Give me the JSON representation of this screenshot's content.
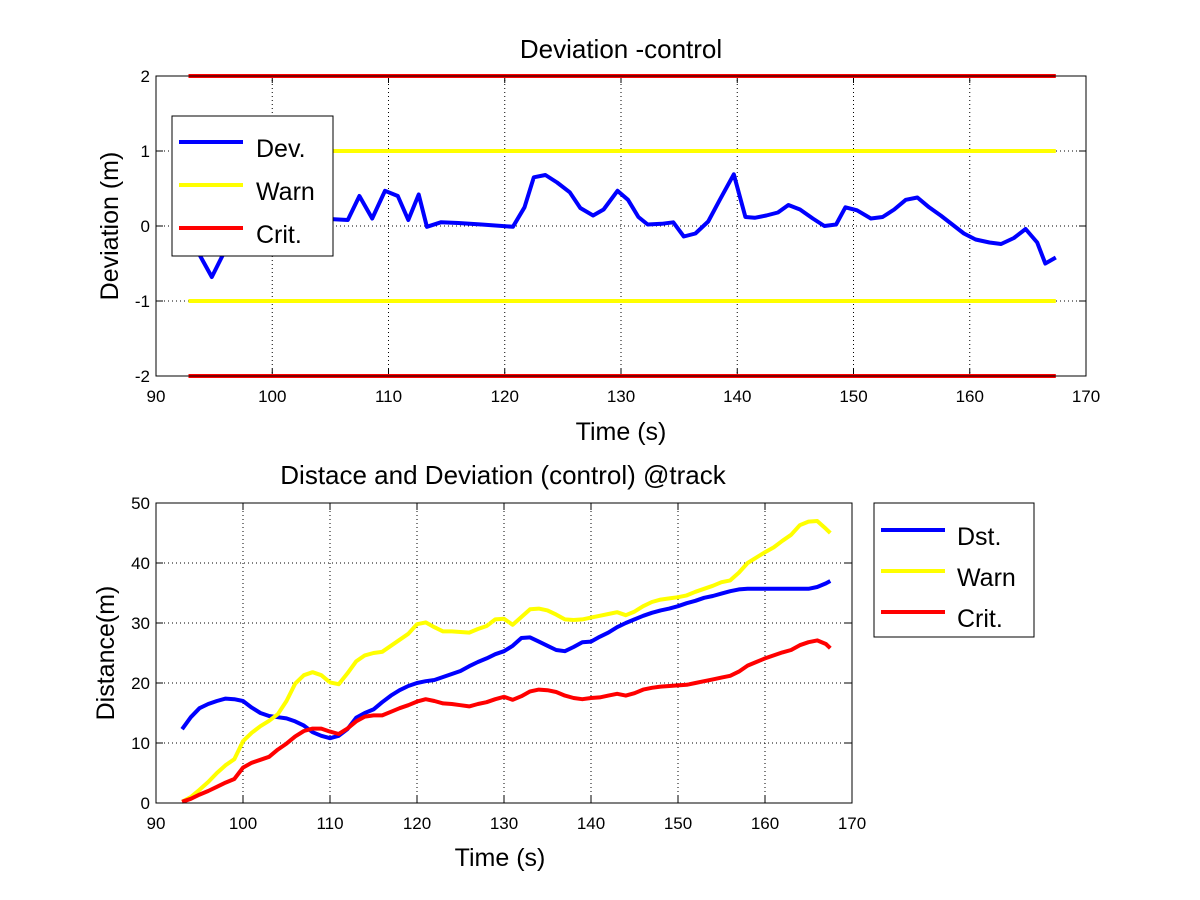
{
  "chart_data": [
    {
      "type": "line",
      "title": "Deviation -control",
      "xlabel": "Time (s)",
      "ylabel": "Deviation (m)",
      "xlim": [
        90,
        170
      ],
      "ylim": [
        -2,
        2
      ],
      "xticks": [
        "90",
        "100",
        "110",
        "120",
        "130",
        "140",
        "150",
        "160",
        "170"
      ],
      "yticks": [
        "-2",
        "-1",
        "0",
        "1",
        "2"
      ],
      "grid": true,
      "legend_position": "top-left",
      "series": [
        {
          "name": "Dev.",
          "color": "#0000ff",
          "x": [
            92.8,
            93.8,
            94.8,
            95.7,
            96.5,
            97.5,
            98.5,
            99.5,
            100.5,
            101.5,
            102.5,
            103.5,
            104.5,
            105.3,
            106.5,
            107.5,
            108.6,
            109.7,
            110.8,
            111.7,
            112.6,
            113.3,
            114.5,
            116,
            118,
            120.7,
            121.7,
            122.5,
            123.5,
            124.5,
            125.6,
            126.5,
            127.6,
            128.5,
            129.7,
            130.6,
            131.5,
            132.3,
            133.5,
            134.5,
            135.4,
            136.4,
            137.5,
            138.5,
            139.7,
            140.7,
            141.5,
            142.5,
            143.5,
            144.4,
            145.4,
            146.5,
            147.5,
            148.5,
            149.3,
            150.3,
            151.5,
            152.5,
            153.5,
            154.5,
            155.5,
            156.5,
            157.5,
            158.5,
            159.5,
            160.5,
            161.7,
            162.7,
            163.8,
            164.8,
            165.8,
            166.5,
            167.4
          ],
          "y": [
            -0.15,
            -0.4,
            -0.68,
            -0.4,
            -0.15,
            0.02,
            0.1,
            0.18,
            0.25,
            0.28,
            0.25,
            0.18,
            0.12,
            0.09,
            0.08,
            0.4,
            0.1,
            0.47,
            0.4,
            0.08,
            0.42,
            -0.01,
            0.05,
            0.04,
            0.02,
            -0.01,
            0.25,
            0.65,
            0.68,
            0.58,
            0.45,
            0.24,
            0.14,
            0.22,
            0.47,
            0.35,
            0.12,
            0.02,
            0.03,
            0.05,
            -0.14,
            -0.1,
            0.06,
            0.35,
            0.69,
            0.12,
            0.11,
            0.14,
            0.18,
            0.28,
            0.22,
            0.1,
            0.0,
            0.02,
            0.25,
            0.21,
            0.1,
            0.12,
            0.22,
            0.35,
            0.38,
            0.25,
            0.14,
            0.02,
            -0.1,
            -0.18,
            -0.22,
            -0.24,
            -0.16,
            -0.04,
            -0.22,
            -0.5,
            -0.42
          ]
        },
        {
          "name": "Warn",
          "color": "#ffff00",
          "x": [
            92.8,
            167.4,
            null,
            92.8,
            167.4
          ],
          "y": [
            1,
            1,
            null,
            -1,
            -1
          ]
        },
        {
          "name": "Crit.",
          "color": "#ff0000",
          "x": [
            92.8,
            167.4,
            null,
            92.8,
            167.4
          ],
          "y": [
            2,
            2,
            null,
            -2,
            -2
          ]
        }
      ]
    },
    {
      "type": "line",
      "title": "Distace and Deviation (control) @track",
      "xlabel": "Time (s)",
      "ylabel": "Distance(m)",
      "xlim": [
        90,
        170
      ],
      "ylim": [
        0,
        50
      ],
      "xticks": [
        "90",
        "100",
        "110",
        "120",
        "130",
        "140",
        "150",
        "160",
        "170"
      ],
      "yticks": [
        "0",
        "10",
        "20",
        "30",
        "40",
        "50"
      ],
      "grid": true,
      "legend_position": "outside-right",
      "series": [
        {
          "name": "Dst.",
          "color": "#0000ff",
          "x": [
            93,
            94,
            95,
            96,
            97,
            98,
            99,
            100,
            101,
            102,
            103,
            104,
            105,
            106,
            107,
            108,
            109,
            110,
            111,
            112,
            113,
            114,
            115,
            116,
            117,
            118,
            119,
            120,
            121,
            122,
            123,
            124,
            125,
            126,
            127,
            128,
            129,
            130,
            131,
            132,
            133,
            134,
            135,
            136,
            137,
            138,
            139,
            140,
            141,
            142,
            143,
            144,
            145,
            146,
            147,
            148,
            149,
            150,
            151,
            152,
            153,
            154,
            155,
            156,
            157,
            158,
            159,
            160,
            161,
            162,
            163,
            164,
            165,
            166,
            167,
            167.5
          ],
          "y": [
            12.3,
            14.3,
            15.8,
            16.5,
            17,
            17.4,
            17.3,
            17,
            15.9,
            15,
            14.5,
            14.3,
            14.1,
            13.6,
            12.9,
            11.8,
            11.2,
            10.8,
            11.2,
            12.3,
            14.2,
            15,
            15.6,
            16.8,
            17.9,
            18.8,
            19.5,
            20,
            20.3,
            20.5,
            21,
            21.5,
            22,
            22.8,
            23.5,
            24.1,
            24.8,
            25.3,
            26.2,
            27.5,
            27.6,
            26.9,
            26.2,
            25.5,
            25.3,
            26,
            26.8,
            26.9,
            27.7,
            28.4,
            29.3,
            30,
            30.6,
            31.2,
            31.7,
            32.1,
            32.4,
            32.8,
            33.3,
            33.7,
            34.2,
            34.5,
            34.9,
            35.3,
            35.6,
            35.7,
            35.7,
            35.7,
            35.7,
            35.7,
            35.7,
            35.7,
            35.7,
            36,
            36.6,
            37
          ]
        },
        {
          "name": "Warn",
          "color": "#ffff00",
          "x": [
            93,
            94,
            95,
            96,
            97,
            98,
            99,
            100,
            101,
            102,
            103,
            104,
            105,
            106,
            107,
            108,
            109,
            110,
            111,
            112,
            113,
            114,
            115,
            116,
            117,
            118,
            119,
            120,
            121,
            122,
            123,
            124,
            125,
            126,
            127,
            128,
            129,
            130,
            131,
            132,
            133,
            134,
            135,
            136,
            137,
            138,
            139,
            140,
            141,
            142,
            143,
            144,
            145,
            146,
            147,
            148,
            149,
            150,
            151,
            152,
            153,
            154,
            155,
            156,
            157,
            158,
            159,
            160,
            161,
            162,
            163,
            164,
            165,
            166,
            167,
            167.5
          ],
          "y": [
            0.2,
            1,
            2.2,
            3.5,
            5,
            6.3,
            7.3,
            10.3,
            11.7,
            12.8,
            13.7,
            14.8,
            17,
            19.9,
            21.3,
            21.8,
            21.3,
            20.1,
            19.8,
            21.6,
            23.6,
            24.6,
            25,
            25.2,
            26.2,
            27.2,
            28.2,
            29.8,
            30.1,
            29.3,
            28.6,
            28.6,
            28.5,
            28.4,
            29,
            29.5,
            30.6,
            30.7,
            29.7,
            31,
            32.3,
            32.4,
            32.1,
            31.4,
            30.6,
            30.5,
            30.6,
            30.9,
            31.2,
            31.5,
            31.8,
            31.3,
            31.9,
            32.8,
            33.5,
            33.9,
            34.1,
            34.3,
            34.6,
            35.2,
            35.7,
            36.2,
            36.8,
            37.1,
            38.4,
            40,
            40.9,
            41.8,
            42.6,
            43.7,
            44.7,
            46.3,
            46.9,
            47,
            45.7,
            45
          ]
        },
        {
          "name": "Crit.",
          "color": "#ff0000",
          "x": [
            93,
            94,
            95,
            96,
            97,
            98,
            99,
            100,
            101,
            102,
            103,
            104,
            105,
            106,
            107,
            108,
            109,
            110,
            111,
            112,
            113,
            114,
            115,
            116,
            117,
            118,
            119,
            120,
            121,
            122,
            123,
            124,
            125,
            126,
            127,
            128,
            129,
            130,
            131,
            132,
            133,
            134,
            135,
            136,
            137,
            138,
            139,
            140,
            141,
            142,
            143,
            144,
            145,
            146,
            147,
            148,
            149,
            150,
            151,
            152,
            153,
            154,
            155,
            156,
            157,
            158,
            159,
            160,
            161,
            162,
            163,
            164,
            165,
            166,
            167,
            167.5
          ],
          "y": [
            0.2,
            0.7,
            1.4,
            2,
            2.7,
            3.4,
            4,
            5.9,
            6.7,
            7.2,
            7.7,
            8.9,
            9.9,
            11.1,
            12,
            12.4,
            12.4,
            11.9,
            11.5,
            12.4,
            13.6,
            14.4,
            14.6,
            14.6,
            15.2,
            15.8,
            16.3,
            16.9,
            17.3,
            17,
            16.6,
            16.5,
            16.3,
            16.1,
            16.5,
            16.8,
            17.3,
            17.7,
            17.2,
            17.8,
            18.6,
            18.9,
            18.8,
            18.5,
            17.9,
            17.5,
            17.3,
            17.5,
            17.6,
            17.9,
            18.2,
            17.9,
            18.3,
            18.9,
            19.2,
            19.4,
            19.5,
            19.6,
            19.7,
            20,
            20.3,
            20.6,
            20.9,
            21.2,
            21.9,
            22.9,
            23.5,
            24.1,
            24.6,
            25.1,
            25.5,
            26.3,
            26.8,
            27.1,
            26.5,
            25.8
          ]
        }
      ]
    }
  ]
}
